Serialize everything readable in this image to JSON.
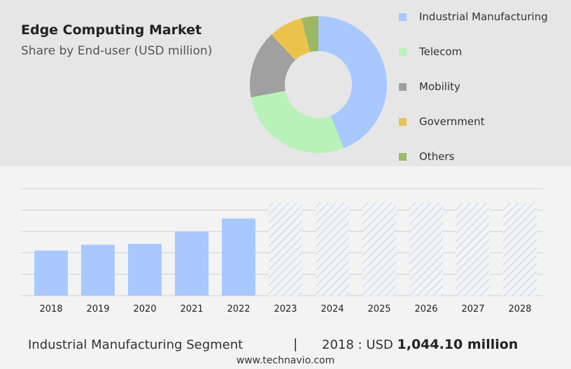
{
  "header": {
    "title": "Edge Computing Market",
    "subtitle": "Share by End-user (USD million)"
  },
  "chart_data": [
    {
      "type": "pie",
      "donut": true,
      "title": "Edge Computing Market",
      "subtitle": "Share by End-user (USD million)",
      "legend_position": "right",
      "slices": [
        {
          "name": "Industrial Manufacturing",
          "share": 44,
          "color": "#a8c8ff"
        },
        {
          "name": "Telecom",
          "share": 28,
          "color": "#b8f2b8"
        },
        {
          "name": "Mobility",
          "share": 16,
          "color": "#a0a0a0"
        },
        {
          "name": "Government",
          "share": 8,
          "color": "#ebc34c"
        },
        {
          "name": "Others",
          "share": 4,
          "color": "#9cb865"
        }
      ]
    },
    {
      "type": "bar",
      "categories": [
        "2018",
        "2019",
        "2020",
        "2021",
        "2022",
        "2023",
        "2024",
        "2025",
        "2026",
        "2027",
        "2028"
      ],
      "values": [
        1044.1,
        1180,
        1200,
        1480,
        1790,
        null,
        null,
        null,
        null,
        null,
        null
      ],
      "forecast_categories": [
        "2023",
        "2024",
        "2025",
        "2026",
        "2027",
        "2028"
      ],
      "ylim": [
        0,
        2480
      ],
      "grid": true,
      "colors": {
        "actual": "#a8c8ff",
        "forecast_hatch": "#bfd2f2"
      }
    }
  ],
  "footer": {
    "segment": "Industrial Manufacturing Segment",
    "separator": "|",
    "year_label": "2018 : USD",
    "value": "1,044.10 million"
  },
  "source": "www.technavio.com"
}
